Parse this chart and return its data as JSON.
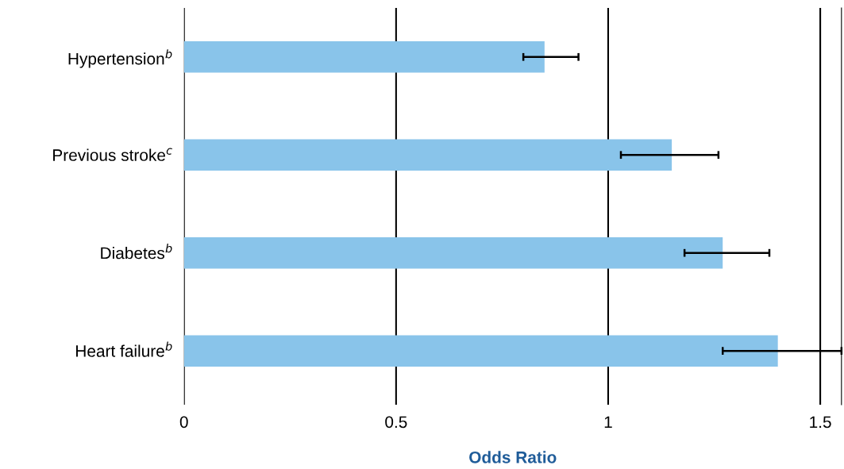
{
  "chart_data": {
    "type": "bar",
    "orientation": "horizontal",
    "categories": [
      "Hypertension$^{b}$",
      "Previous stroke$^{c}$",
      "Diabetes$^{b}$",
      "Heart failure$^{b}$"
    ],
    "values": [
      0.85,
      1.15,
      1.27,
      1.4
    ],
    "errors": [
      [
        0.8,
        0.93
      ],
      [
        1.03,
        1.26
      ],
      [
        1.18,
        1.38
      ],
      [
        1.27,
        1.55
      ]
    ],
    "color": "#89c4ea",
    "xlim": [
      0,
      1.55
    ],
    "xticks": [
      0,
      0.5,
      1,
      1.5
    ],
    "xlabel": "Odds Ratio",
    "grid": "x"
  }
}
